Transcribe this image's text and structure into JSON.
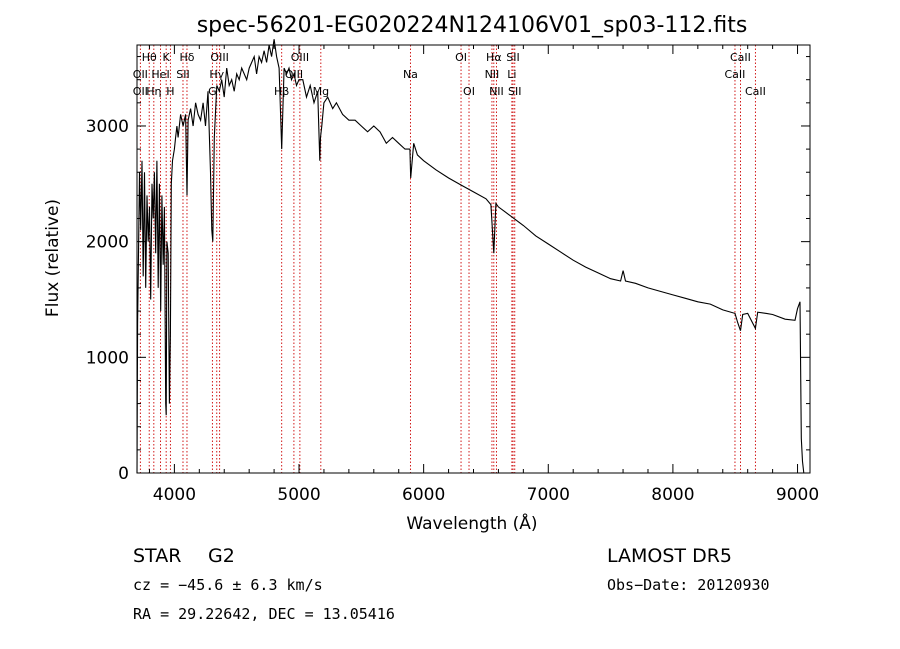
{
  "chart_data": {
    "type": "line",
    "title": "spec-56201-EG020224N124106V01_sp03-112.fits",
    "xlabel": "Wavelength (Å)",
    "ylabel": "Flux (relative)",
    "xlim": [
      3700,
      9100
    ],
    "ylim": [
      0,
      3700
    ],
    "xticks": [
      4000,
      5000,
      6000,
      7000,
      8000,
      9000
    ],
    "yticks": [
      0,
      1000,
      2000,
      3000
    ],
    "grid": false,
    "series": [
      {
        "color": "#000000",
        "x": [
          3700,
          3705,
          3712,
          3720,
          3730,
          3740,
          3750,
          3760,
          3770,
          3780,
          3790,
          3800,
          3810,
          3820,
          3830,
          3840,
          3850,
          3860,
          3870,
          3880,
          3890,
          3900,
          3910,
          3920,
          3930,
          3934,
          3940,
          3950,
          3960,
          3968,
          3975,
          3985,
          4000,
          4010,
          4020,
          4030,
          4050,
          4070,
          4090,
          4101,
          4110,
          4130,
          4150,
          4170,
          4190,
          4210,
          4230,
          4250,
          4270,
          4290,
          4300,
          4308,
          4320,
          4340,
          4360,
          4380,
          4400,
          4420,
          4440,
          4460,
          4480,
          4500,
          4520,
          4540,
          4560,
          4580,
          4600,
          4620,
          4640,
          4660,
          4680,
          4700,
          4720,
          4740,
          4760,
          4780,
          4800,
          4820,
          4840,
          4861,
          4880,
          4900,
          4920,
          4940,
          4960,
          4980,
          5000,
          5030,
          5060,
          5090,
          5120,
          5150,
          5167,
          5172,
          5183,
          5200,
          5230,
          5270,
          5300,
          5350,
          5400,
          5450,
          5500,
          5550,
          5600,
          5650,
          5700,
          5750,
          5800,
          5850,
          5890,
          5896,
          5920,
          5950,
          6000,
          6100,
          6200,
          6300,
          6400,
          6500,
          6540,
          6563,
          6580,
          6600,
          6650,
          6700,
          6800,
          6900,
          7000,
          7100,
          7200,
          7300,
          7400,
          7500,
          7580,
          7600,
          7620,
          7700,
          7800,
          7900,
          8000,
          8100,
          8200,
          8300,
          8400,
          8498,
          8520,
          8542,
          8560,
          8600,
          8662,
          8680,
          8750,
          8800,
          8900,
          8980,
          9000,
          9020,
          9030,
          9040,
          9050
        ],
        "y": [
          0,
          1300,
          1900,
          2600,
          2100,
          2700,
          1700,
          2600,
          1600,
          2400,
          2000,
          2300,
          1500,
          2500,
          2200,
          2600,
          1900,
          2700,
          1600,
          2500,
          1400,
          2400,
          1800,
          2300,
          600,
          500,
          2000,
          1900,
          600,
          1200,
          2500,
          2700,
          2800,
          2900,
          3000,
          2900,
          3100,
          3000,
          3100,
          2400,
          3050,
          3150,
          3000,
          3200,
          3100,
          3050,
          3200,
          3000,
          3300,
          2600,
          2100,
          2000,
          2900,
          3350,
          3300,
          3400,
          3250,
          3500,
          3350,
          3400,
          3300,
          3450,
          3400,
          3500,
          3450,
          3400,
          3500,
          3550,
          3600,
          3450,
          3600,
          3550,
          3650,
          3550,
          3700,
          3600,
          3750,
          3600,
          3500,
          2800,
          3500,
          3450,
          3500,
          3400,
          3450,
          3350,
          3400,
          3400,
          3250,
          3350,
          3200,
          3300,
          2700,
          2900,
          3000,
          3200,
          3250,
          3150,
          3200,
          3100,
          3050,
          3050,
          3000,
          2950,
          3000,
          2950,
          2850,
          2900,
          2850,
          2800,
          2800,
          2550,
          2850,
          2750,
          2700,
          2620,
          2550,
          2490,
          2430,
          2370,
          2320,
          1900,
          2330,
          2300,
          2260,
          2220,
          2140,
          2050,
          1980,
          1910,
          1840,
          1780,
          1730,
          1680,
          1660,
          1750,
          1660,
          1640,
          1600,
          1570,
          1540,
          1510,
          1480,
          1460,
          1410,
          1380,
          1300,
          1230,
          1370,
          1380,
          1250,
          1390,
          1380,
          1370,
          1330,
          1320,
          1420,
          1480,
          300,
          100,
          0
        ]
      }
    ],
    "lines": [
      {
        "label": "Hθ",
        "x": 3798,
        "row": 0
      },
      {
        "label": "OII",
        "x": 3727,
        "row": 1
      },
      {
        "label": "OII",
        "x": 3727,
        "row": 2
      },
      {
        "label": "K",
        "x": 3934,
        "row": 0
      },
      {
        "label": "HeI",
        "x": 3889,
        "row": 1
      },
      {
        "label": "Hη",
        "x": 3835,
        "row": 2
      },
      {
        "label": "Hδ",
        "x": 4101,
        "row": 0
      },
      {
        "label": "SII",
        "x": 4069,
        "row": 1
      },
      {
        "label": "H",
        "x": 3968,
        "row": 2
      },
      {
        "label": "OIII",
        "x": 4363,
        "row": 0
      },
      {
        "label": "Hγ",
        "x": 4340,
        "row": 1
      },
      {
        "label": "G",
        "x": 4305,
        "row": 2
      },
      {
        "label": "OIII",
        "x": 5007,
        "row": 0
      },
      {
        "label": "OIII",
        "x": 4959,
        "row": 1
      },
      {
        "label": "Hβ",
        "x": 4861,
        "row": 2
      },
      {
        "label": "Mg",
        "x": 5175,
        "row": 2
      },
      {
        "label": "Na",
        "x": 5894,
        "row": 1
      },
      {
        "label": "OI",
        "x": 6300,
        "row": 0
      },
      {
        "label": "OI",
        "x": 6364,
        "row": 2
      },
      {
        "label": "Hα",
        "x": 6563,
        "row": 0
      },
      {
        "label": "NII",
        "x": 6548,
        "row": 1
      },
      {
        "label": "NII",
        "x": 6584,
        "row": 2
      },
      {
        "label": "SII",
        "x": 6717,
        "row": 0
      },
      {
        "label": "Li",
        "x": 6708,
        "row": 1
      },
      {
        "label": "SII",
        "x": 6731,
        "row": 2
      },
      {
        "label": "CaII",
        "x": 8542,
        "row": 0
      },
      {
        "label": "CaII",
        "x": 8498,
        "row": 1
      },
      {
        "label": "CaII",
        "x": 8662,
        "row": 2
      }
    ],
    "annotations": {
      "object": "STAR",
      "subclass": "G2",
      "survey": "LAMOST DR5",
      "redshift": "cz = −45.6 ± 6.3 km/s",
      "obs_date": "Obs−Date: 20120930",
      "coords": "RA =  29.22642, DEC =  13.05416"
    }
  }
}
